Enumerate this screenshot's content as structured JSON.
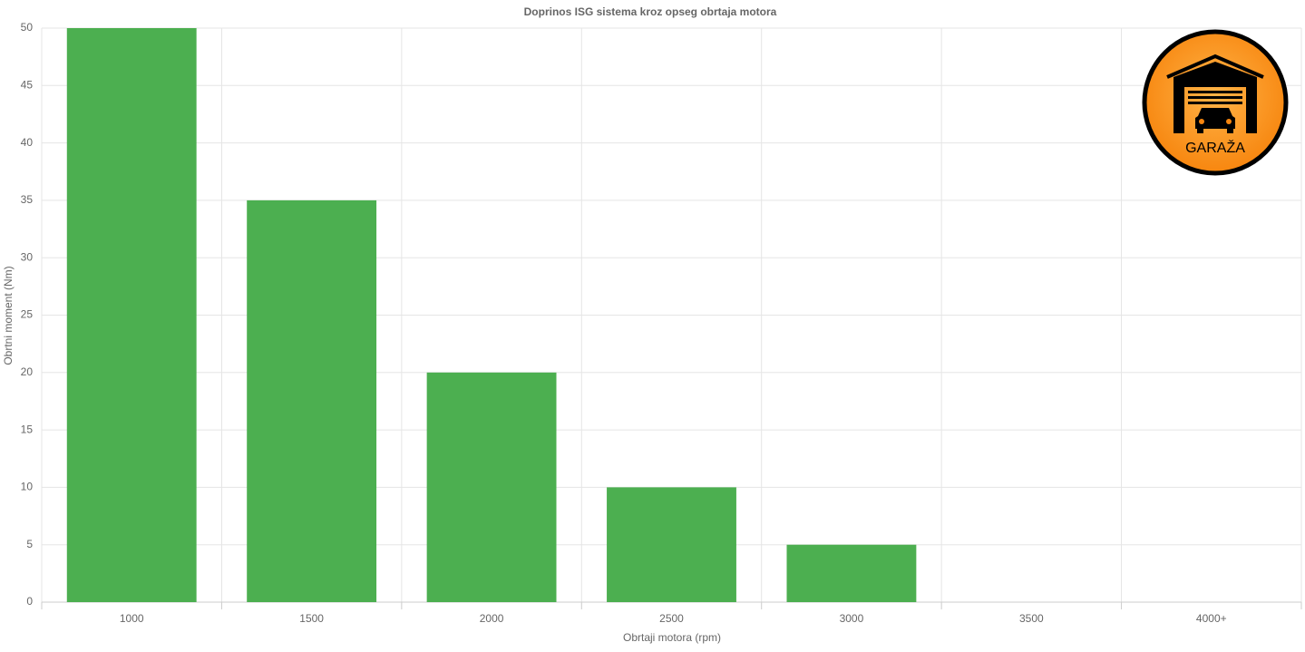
{
  "chart_data": {
    "type": "bar",
    "title": "Doprinos ISG sistema kroz opseg obrtaja motora",
    "x_label": "Obrtaji motora (rpm)",
    "y_label": "Obrtni moment (Nm)",
    "categories": [
      "1000",
      "1500",
      "2000",
      "2500",
      "3000",
      "3500",
      "4000+"
    ],
    "values": [
      50,
      35,
      20,
      10,
      5,
      0,
      0
    ],
    "color": "#4caf50",
    "ylim": [
      0,
      50
    ],
    "yticks": [
      0,
      5,
      10,
      15,
      20,
      25,
      30,
      35,
      40,
      45,
      50
    ],
    "grid": true
  },
  "logo": {
    "text": "GARAŽA"
  }
}
